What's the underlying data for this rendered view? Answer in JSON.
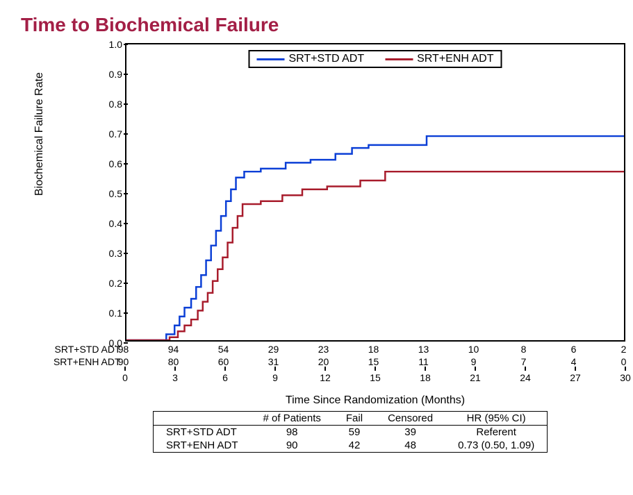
{
  "title": "Time to Biochemical Failure",
  "title_color": "#a31f46",
  "background_color": "#ffffff",
  "chart": {
    "type": "kaplan-meier-step",
    "ylabel": "Biochemical Failure Rate",
    "xlabel": "Time Since Randomization (Months)",
    "xlim": [
      0,
      30
    ],
    "ylim": [
      0.0,
      1.0
    ],
    "ytick_step": 0.1,
    "xtick_step": 3,
    "label_fontsize": 16,
    "tick_fontsize": 14,
    "line_width": 2.5,
    "border_color": "#000000",
    "series": [
      {
        "name": "SRT+STD ADT",
        "color": "#0b3fd6",
        "points": [
          [
            0,
            0.0
          ],
          [
            2.3,
            0.0
          ],
          [
            2.4,
            0.02
          ],
          [
            2.8,
            0.02
          ],
          [
            2.9,
            0.05
          ],
          [
            3.1,
            0.05
          ],
          [
            3.2,
            0.08
          ],
          [
            3.4,
            0.08
          ],
          [
            3.5,
            0.11
          ],
          [
            3.8,
            0.11
          ],
          [
            3.9,
            0.14
          ],
          [
            4.1,
            0.14
          ],
          [
            4.2,
            0.18
          ],
          [
            4.4,
            0.18
          ],
          [
            4.5,
            0.22
          ],
          [
            4.7,
            0.22
          ],
          [
            4.8,
            0.27
          ],
          [
            5.0,
            0.27
          ],
          [
            5.1,
            0.32
          ],
          [
            5.3,
            0.32
          ],
          [
            5.4,
            0.37
          ],
          [
            5.6,
            0.37
          ],
          [
            5.7,
            0.42
          ],
          [
            5.9,
            0.42
          ],
          [
            6.0,
            0.47
          ],
          [
            6.2,
            0.47
          ],
          [
            6.3,
            0.51
          ],
          [
            6.5,
            0.51
          ],
          [
            6.6,
            0.55
          ],
          [
            7.0,
            0.55
          ],
          [
            7.1,
            0.57
          ],
          [
            8.0,
            0.57
          ],
          [
            8.1,
            0.58
          ],
          [
            9.5,
            0.58
          ],
          [
            9.6,
            0.6
          ],
          [
            11.0,
            0.6
          ],
          [
            11.1,
            0.61
          ],
          [
            12.5,
            0.61
          ],
          [
            12.6,
            0.63
          ],
          [
            13.5,
            0.63
          ],
          [
            13.6,
            0.65
          ],
          [
            14.5,
            0.65
          ],
          [
            14.6,
            0.66
          ],
          [
            18.0,
            0.66
          ],
          [
            18.1,
            0.69
          ],
          [
            30,
            0.69
          ]
        ]
      },
      {
        "name": "SRT+ENH ADT",
        "color": "#a81c2c",
        "points": [
          [
            0,
            0.0
          ],
          [
            2.5,
            0.0
          ],
          [
            2.6,
            0.01
          ],
          [
            3.0,
            0.01
          ],
          [
            3.1,
            0.03
          ],
          [
            3.4,
            0.03
          ],
          [
            3.5,
            0.05
          ],
          [
            3.8,
            0.05
          ],
          [
            3.9,
            0.07
          ],
          [
            4.2,
            0.07
          ],
          [
            4.3,
            0.1
          ],
          [
            4.5,
            0.1
          ],
          [
            4.6,
            0.13
          ],
          [
            4.8,
            0.13
          ],
          [
            4.9,
            0.16
          ],
          [
            5.1,
            0.16
          ],
          [
            5.2,
            0.2
          ],
          [
            5.4,
            0.2
          ],
          [
            5.5,
            0.24
          ],
          [
            5.7,
            0.24
          ],
          [
            5.8,
            0.28
          ],
          [
            6.0,
            0.28
          ],
          [
            6.1,
            0.33
          ],
          [
            6.3,
            0.33
          ],
          [
            6.4,
            0.38
          ],
          [
            6.6,
            0.38
          ],
          [
            6.7,
            0.42
          ],
          [
            6.9,
            0.42
          ],
          [
            7.0,
            0.46
          ],
          [
            8.0,
            0.46
          ],
          [
            8.1,
            0.47
          ],
          [
            9.3,
            0.47
          ],
          [
            9.4,
            0.49
          ],
          [
            10.5,
            0.49
          ],
          [
            10.6,
            0.51
          ],
          [
            12.0,
            0.51
          ],
          [
            12.1,
            0.52
          ],
          [
            14.0,
            0.52
          ],
          [
            14.1,
            0.54
          ],
          [
            15.5,
            0.54
          ],
          [
            15.6,
            0.57
          ],
          [
            30,
            0.57
          ]
        ]
      }
    ],
    "legend": {
      "position": "top-center",
      "border_color": "#000000",
      "items": [
        "SRT+STD ADT",
        "SRT+ENH ADT"
      ]
    },
    "at_risk": {
      "x_positions": [
        0,
        3,
        6,
        9,
        12,
        15,
        18,
        21,
        24,
        27,
        30
      ],
      "rows": [
        {
          "label": "SRT+STD ADT",
          "counts": [
            98,
            94,
            54,
            29,
            23,
            18,
            13,
            10,
            8,
            6,
            2
          ]
        },
        {
          "label": "SRT+ENH ADT",
          "counts": [
            90,
            80,
            60,
            31,
            20,
            15,
            11,
            9,
            7,
            4,
            0
          ]
        }
      ]
    }
  },
  "stats_table": {
    "columns": [
      "",
      "# of Patients",
      "Fail",
      "Censored",
      "HR (95% CI)"
    ],
    "rows": [
      [
        "SRT+STD ADT",
        "98",
        "59",
        "39",
        "Referent"
      ],
      [
        "SRT+ENH ADT",
        "90",
        "42",
        "48",
        "0.73 (0.50, 1.09)"
      ]
    ]
  }
}
